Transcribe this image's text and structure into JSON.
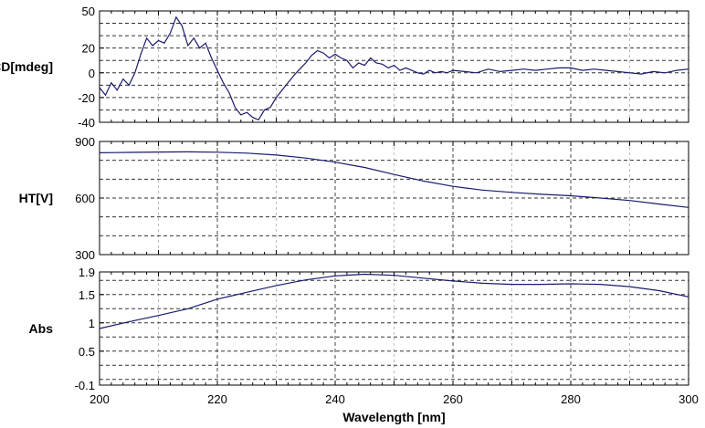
{
  "chart_data": [
    {
      "type": "line",
      "ylabel": "CD[mdeg]",
      "ylim": [
        -40,
        50
      ],
      "xlim": [
        200,
        300
      ],
      "ytick_labels": [
        "50",
        "20",
        "0",
        "-20",
        "-40"
      ],
      "yticks": [
        50,
        20,
        0,
        -20,
        -40
      ],
      "minor_grid_y": [
        -30,
        -10,
        10,
        30,
        40
      ],
      "grid": true,
      "color": "#1a1a6e",
      "series": [
        {
          "x": [
            200,
            201,
            202,
            203,
            204,
            205,
            206,
            207,
            208,
            209,
            210,
            211,
            212,
            213,
            214,
            215,
            216,
            217,
            218,
            219,
            220,
            221,
            222,
            223,
            224,
            225,
            226,
            227,
            228,
            229,
            230,
            231,
            232,
            233,
            234,
            235,
            236,
            237,
            238,
            239,
            240,
            241,
            242,
            243,
            244,
            245,
            246,
            247,
            248,
            249,
            250,
            251,
            252,
            253,
            254,
            255,
            256,
            257,
            258,
            259,
            260,
            262,
            264,
            266,
            268,
            270,
            272,
            274,
            276,
            278,
            280,
            282,
            284,
            286,
            288,
            290,
            292,
            294,
            296,
            298,
            300
          ],
          "y": [
            -12,
            -18,
            -8,
            -14,
            -5,
            -10,
            0,
            15,
            28,
            22,
            26,
            24,
            32,
            45,
            38,
            22,
            28,
            20,
            24,
            12,
            2,
            -8,
            -16,
            -28,
            -34,
            -32,
            -36,
            -38,
            -30,
            -28,
            -20,
            -14,
            -8,
            -2,
            3,
            8,
            14,
            18,
            16,
            12,
            15,
            12,
            10,
            4,
            8,
            6,
            12,
            8,
            7,
            4,
            6,
            2,
            4,
            2,
            0,
            -1,
            2,
            0,
            1,
            0,
            2,
            1,
            0,
            3,
            1,
            2,
            3,
            2,
            3,
            4,
            4,
            2,
            3,
            2,
            1,
            0,
            -1,
            1,
            0,
            2,
            3
          ]
        }
      ]
    },
    {
      "type": "line",
      "ylabel": "HT[V]",
      "ylim": [
        300,
        900
      ],
      "xlim": [
        200,
        300
      ],
      "ytick_labels": [
        "900",
        "600",
        "300"
      ],
      "yticks": [
        900,
        600,
        300
      ],
      "minor_grid_y": [
        400,
        500,
        700,
        800
      ],
      "grid": true,
      "color": "#1a1a6e",
      "series": [
        {
          "x": [
            200,
            205,
            210,
            215,
            220,
            225,
            230,
            235,
            240,
            245,
            250,
            255,
            260,
            265,
            270,
            275,
            280,
            285,
            290,
            295,
            300
          ],
          "y": [
            840,
            842,
            844,
            845,
            843,
            838,
            828,
            812,
            790,
            762,
            725,
            690,
            662,
            642,
            630,
            620,
            612,
            600,
            587,
            568,
            550
          ]
        }
      ]
    },
    {
      "type": "line",
      "ylabel": "Abs",
      "xlabel": "Wavelength [nm]",
      "ylim": [
        -0.1,
        1.9
      ],
      "xlim": [
        200,
        300
      ],
      "ytick_labels": [
        "1.9",
        "1.5",
        "1",
        "0.5",
        "-0.1"
      ],
      "yticks": [
        1.9,
        1.5,
        1,
        0.5,
        -0.1
      ],
      "xtick_labels": [
        "200",
        "220",
        "240",
        "260",
        "280",
        "300"
      ],
      "xticks": [
        200,
        220,
        240,
        260,
        280,
        300
      ],
      "minor_grid_y": [
        0,
        0.25,
        0.75,
        1.25,
        1.75
      ],
      "grid": true,
      "color": "#1a1a6e",
      "series": [
        {
          "x": [
            200,
            205,
            210,
            215,
            220,
            225,
            230,
            235,
            240,
            245,
            250,
            255,
            260,
            265,
            270,
            275,
            280,
            285,
            290,
            295,
            300
          ],
          "y": [
            0.9,
            1.02,
            1.13,
            1.25,
            1.42,
            1.54,
            1.66,
            1.76,
            1.83,
            1.86,
            1.84,
            1.79,
            1.74,
            1.7,
            1.68,
            1.68,
            1.69,
            1.68,
            1.64,
            1.57,
            1.46
          ]
        }
      ]
    }
  ]
}
